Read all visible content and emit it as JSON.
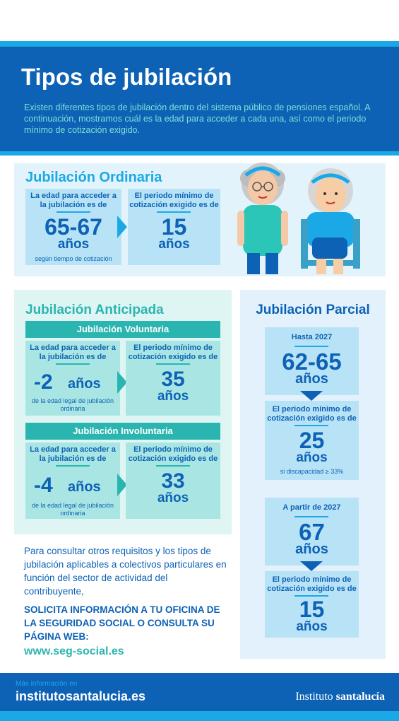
{
  "header": {
    "title": "Tipos de jubilación",
    "intro": "Existen diferentes tipos de jubilación dentro del sistema público de pensiones español. A continuación, mostramos cuál es la edad para acceder a cada una, así como el periodo mínimo de cotización exigido."
  },
  "ordinaria": {
    "title": "Jubilación Ordinaria",
    "age_label": "La edad para acceder a la jubilación es de",
    "age_value": "65-67",
    "age_unit": "años",
    "age_note": "según tiempo de cotización",
    "period_label": "El periodo mínimo de cotización exigido es de",
    "period_value": "15",
    "period_unit": "años"
  },
  "anticipada": {
    "title": "Jubilación Anticipada",
    "voluntaria": {
      "title": "Jubilación Voluntaria",
      "age_label": "La edad para acceder a la jubilación es de",
      "age_value": "-2",
      "age_unit": "años",
      "age_note": "de la edad legal de jubilación ordinaria",
      "period_label": "El periodo mínimo de cotización exigido es de",
      "period_value": "35",
      "period_unit": "años"
    },
    "involuntaria": {
      "title": "Jubilación Involuntaria",
      "age_label": "La edad para acceder a la jubilación es de",
      "age_value": "-4",
      "age_unit": "años",
      "age_note": "de la edad legal de jubilación ordinaria",
      "period_label": "El periodo mínimo de cotización exigido es de",
      "period_value": "33",
      "period_unit": "años"
    }
  },
  "parcial": {
    "title": "Jubilación Parcial",
    "block1": {
      "when": "Hasta 2027",
      "age_value": "62-65",
      "age_unit": "años",
      "period_label": "El periodo mínimo de cotización exigido es de",
      "period_value": "25",
      "period_unit": "años",
      "note": "si discapacidad ≥ 33%"
    },
    "block2": {
      "when": "A partir de 2027",
      "age_value": "67",
      "age_unit": "años",
      "period_label": "El periodo mínimo de cotización exigido es de",
      "period_value": "15",
      "period_unit": "años"
    }
  },
  "info": {
    "text": "Para consultar otros requisitos y los tipos de jubilación aplicables a colectivos particulares en función del sector de actividad del contribuyente,",
    "strong": "SOLICITA INFORMACIÓN A TU OFICINA DE LA SEGURIDAD SOCIAL O CONSULTA SU PÁGINA WEB:",
    "web": "www.seg-social.es"
  },
  "footer": {
    "small": "Más información en",
    "url": "institutosantalucia.es",
    "brand_light": "Instituto ",
    "brand_bold": "santalucía"
  },
  "colors": {
    "primary": "#0d62b5",
    "accent_blue": "#1aa9e6",
    "accent_teal": "#2bb5b0"
  }
}
